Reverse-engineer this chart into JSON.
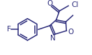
{
  "bg_color": "#ffffff",
  "line_color": "#2a2a7a",
  "text_color": "#2a2a7a",
  "figsize": [
    1.32,
    0.79
  ],
  "dpi": 100,
  "xlim": [
    0,
    132
  ],
  "ylim": [
    0,
    79
  ]
}
